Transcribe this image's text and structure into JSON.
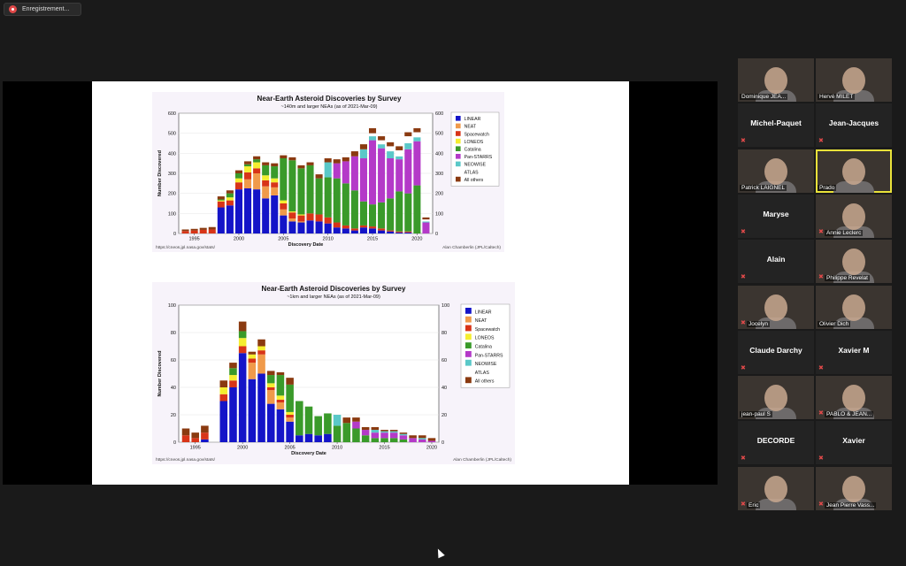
{
  "recording": {
    "label": "Enregistrement..."
  },
  "chart1": {
    "title": "Near-Earth Asteroid Discoveries by Survey",
    "subtitle": "~140m and larger NEAs (as of 2021-Mar-09)",
    "ylabel": "Number Discovered",
    "xlabel": "Discovery Date",
    "url": "https://cneos.jpl.nasa.gov/stats/",
    "credit": "Alan Chamberlin (JPL/Caltech)"
  },
  "chart2": {
    "title": "Near-Earth Asteroid Discoveries by Survey",
    "subtitle": "~1km and larger NEAs (as of 2021-Mar-09)",
    "ylabel": "Number Discovered",
    "xlabel": "Discovery Date",
    "url": "https://cneos.jpl.nasa.gov/stats/",
    "credit": "Alan Chamberlin (JPL/Caltech)"
  },
  "chart_data": [
    {
      "type": "bar",
      "stacked": true,
      "title": "Near-Earth Asteroid Discoveries by Survey",
      "subtitle": "~140m and larger NEAs (as of 2021-Mar-09)",
      "xlabel": "Discovery Date",
      "ylabel": "Number Discovered",
      "ylim": [
        0,
        600
      ],
      "yticks": [
        0,
        100,
        200,
        300,
        400,
        500,
        600
      ],
      "xticks": [
        1995,
        2000,
        2005,
        2010,
        2015,
        2020
      ],
      "legend_position": "right",
      "categories": [
        1994,
        1995,
        1996,
        1997,
        1998,
        1999,
        2000,
        2001,
        2002,
        2003,
        2004,
        2005,
        2006,
        2007,
        2008,
        2009,
        2010,
        2011,
        2012,
        2013,
        2014,
        2015,
        2016,
        2017,
        2018,
        2019,
        2020,
        2021
      ],
      "series": [
        {
          "name": "LINEAR",
          "color": "#1414c8",
          "values": [
            0,
            0,
            0,
            0,
            130,
            140,
            220,
            225,
            220,
            175,
            190,
            90,
            60,
            55,
            65,
            60,
            50,
            30,
            25,
            15,
            30,
            25,
            15,
            10,
            5,
            5,
            0,
            0
          ]
        },
        {
          "name": "NEAT",
          "color": "#f09a4a",
          "values": [
            0,
            0,
            0,
            0,
            0,
            0,
            0,
            45,
            80,
            60,
            40,
            30,
            15,
            5,
            0,
            0,
            0,
            0,
            0,
            0,
            0,
            0,
            0,
            0,
            0,
            0,
            0,
            0
          ]
        },
        {
          "name": "Spacewatch",
          "color": "#d83418",
          "values": [
            12,
            15,
            18,
            20,
            30,
            25,
            35,
            35,
            25,
            30,
            25,
            30,
            30,
            30,
            35,
            35,
            30,
            25,
            15,
            10,
            10,
            10,
            10,
            5,
            5,
            5,
            0,
            0
          ]
        },
        {
          "name": "LONEOS",
          "color": "#f5ee30",
          "values": [
            0,
            0,
            0,
            0,
            5,
            15,
            20,
            30,
            30,
            25,
            20,
            15,
            5,
            5,
            0,
            0,
            0,
            0,
            0,
            0,
            0,
            0,
            0,
            0,
            0,
            0,
            0,
            0
          ]
        },
        {
          "name": "Catalina",
          "color": "#3a9a2a",
          "values": [
            0,
            0,
            0,
            0,
            5,
            20,
            25,
            10,
            15,
            50,
            60,
            210,
            255,
            230,
            240,
            180,
            200,
            220,
            210,
            190,
            120,
            110,
            130,
            160,
            200,
            190,
            240,
            0
          ]
        },
        {
          "name": "Pan-STARRS",
          "color": "#b43ac8",
          "values": [
            0,
            0,
            0,
            0,
            0,
            0,
            0,
            0,
            0,
            0,
            0,
            0,
            0,
            0,
            0,
            0,
            0,
            75,
            110,
            170,
            215,
            320,
            270,
            200,
            160,
            220,
            220,
            55
          ]
        },
        {
          "name": "NEOWISE",
          "color": "#5ac8c8",
          "values": [
            0,
            0,
            0,
            0,
            0,
            0,
            0,
            0,
            0,
            0,
            0,
            0,
            0,
            0,
            0,
            0,
            75,
            0,
            0,
            0,
            45,
            20,
            20,
            35,
            15,
            30,
            20,
            5
          ]
        },
        {
          "name": "ATLAS",
          "color": "#ffffff",
          "values": [
            0,
            0,
            0,
            0,
            0,
            0,
            0,
            0,
            0,
            0,
            0,
            0,
            0,
            0,
            0,
            0,
            0,
            0,
            0,
            0,
            0,
            15,
            20,
            25,
            30,
            35,
            25,
            10
          ]
        },
        {
          "name": "All others",
          "color": "#8a3a10",
          "values": [
            8,
            8,
            10,
            12,
            15,
            15,
            15,
            15,
            15,
            15,
            15,
            15,
            15,
            15,
            15,
            20,
            20,
            20,
            20,
            25,
            25,
            25,
            20,
            20,
            20,
            20,
            20,
            10
          ]
        }
      ]
    },
    {
      "type": "bar",
      "stacked": true,
      "title": "Near-Earth Asteroid Discoveries by Survey",
      "subtitle": "~1km and larger NEAs (as of 2021-Mar-09)",
      "xlabel": "Discovery Date",
      "ylabel": "Number Discovered",
      "ylim": [
        0,
        100
      ],
      "yticks": [
        0,
        20,
        40,
        60,
        80,
        100
      ],
      "xticks": [
        1995,
        2000,
        2005,
        2010,
        2015,
        2020
      ],
      "legend_position": "right",
      "categories": [
        1994,
        1995,
        1996,
        1997,
        1998,
        1999,
        2000,
        2001,
        2002,
        2003,
        2004,
        2005,
        2006,
        2007,
        2008,
        2009,
        2010,
        2011,
        2012,
        2013,
        2014,
        2015,
        2016,
        2017,
        2018,
        2019,
        2020
      ],
      "series": [
        {
          "name": "LINEAR",
          "color": "#1414c8",
          "values": [
            0,
            0,
            2,
            0,
            30,
            40,
            65,
            46,
            50,
            28,
            24,
            15,
            5,
            6,
            5,
            6,
            0,
            0,
            0,
            0,
            0,
            0,
            0,
            0,
            0,
            0,
            0
          ]
        },
        {
          "name": "NEAT",
          "color": "#f09a4a",
          "values": [
            0,
            0,
            0,
            0,
            0,
            0,
            0,
            12,
            14,
            10,
            5,
            3,
            0,
            0,
            0,
            0,
            0,
            0,
            0,
            0,
            0,
            0,
            0,
            0,
            0,
            0,
            0
          ]
        },
        {
          "name": "Spacewatch",
          "color": "#d83418",
          "values": [
            5,
            3,
            5,
            0,
            5,
            5,
            5,
            3,
            3,
            2,
            2,
            2,
            0,
            0,
            0,
            0,
            0,
            0,
            0,
            0,
            0,
            0,
            0,
            0,
            0,
            0,
            0
          ]
        },
        {
          "name": "LONEOS",
          "color": "#f5ee30",
          "values": [
            0,
            0,
            0,
            0,
            5,
            4,
            6,
            3,
            3,
            3,
            3,
            2,
            0,
            0,
            0,
            0,
            0,
            0,
            0,
            0,
            0,
            0,
            0,
            0,
            0,
            0,
            0
          ]
        },
        {
          "name": "Catalina",
          "color": "#3a9a2a",
          "values": [
            0,
            0,
            0,
            0,
            0,
            5,
            5,
            0,
            0,
            6,
            15,
            20,
            25,
            20,
            14,
            15,
            12,
            14,
            10,
            5,
            3,
            3,
            3,
            2,
            0,
            0,
            0
          ]
        },
        {
          "name": "Pan-STARRS",
          "color": "#b43ac8",
          "values": [
            0,
            0,
            0,
            0,
            0,
            0,
            0,
            0,
            0,
            0,
            0,
            0,
            0,
            0,
            0,
            0,
            0,
            0,
            5,
            4,
            4,
            4,
            4,
            3,
            3,
            2,
            1
          ]
        },
        {
          "name": "NEOWISE",
          "color": "#5ac8c8",
          "values": [
            0,
            0,
            0,
            0,
            0,
            0,
            0,
            0,
            0,
            0,
            0,
            0,
            0,
            0,
            0,
            0,
            8,
            0,
            0,
            0,
            2,
            1,
            1,
            1,
            0,
            1,
            0
          ]
        },
        {
          "name": "ATLAS",
          "color": "#ffffff",
          "values": [
            0,
            0,
            0,
            0,
            0,
            0,
            0,
            0,
            0,
            0,
            0,
            0,
            0,
            0,
            0,
            0,
            0,
            0,
            0,
            0,
            0,
            0,
            0,
            0,
            0,
            0,
            0
          ]
        },
        {
          "name": "All others",
          "color": "#8a3a10",
          "values": [
            5,
            4,
            5,
            0,
            5,
            4,
            7,
            2,
            5,
            3,
            2,
            5,
            0,
            0,
            0,
            0,
            0,
            4,
            3,
            2,
            2,
            1,
            1,
            1,
            2,
            2,
            2
          ]
        }
      ]
    }
  ],
  "participants": [
    {
      "name": "Dominique JEA...",
      "type": "video",
      "muted": false
    },
    {
      "name": "Hervé MILET",
      "type": "video",
      "muted": false
    },
    {
      "name": "Michel-Paquet",
      "type": "name",
      "muted": true
    },
    {
      "name": "Jean-Jacques",
      "type": "name",
      "muted": true
    },
    {
      "name": "Patrick LAIGNEL",
      "type": "video",
      "muted": false
    },
    {
      "name": "Prado",
      "type": "video",
      "muted": false,
      "active": true
    },
    {
      "name": "Maryse",
      "type": "name",
      "muted": true
    },
    {
      "name": "Annie Leclerc",
      "type": "video",
      "muted": true
    },
    {
      "name": "Alain",
      "type": "name",
      "muted": true
    },
    {
      "name": "Philippe Revelat",
      "type": "video",
      "muted": true
    },
    {
      "name": "Jocelyn",
      "type": "video",
      "muted": true
    },
    {
      "name": "Olivier Dich",
      "type": "video",
      "muted": false
    },
    {
      "name": "Claude Darchy",
      "type": "name",
      "muted": true
    },
    {
      "name": "Xavier M",
      "type": "name",
      "muted": true
    },
    {
      "name": "jean-paul S",
      "type": "video",
      "muted": false
    },
    {
      "name": "PABLO & JEAN...",
      "type": "video",
      "muted": true
    },
    {
      "name": "DECORDE",
      "type": "name",
      "muted": true
    },
    {
      "name": "Xavier",
      "type": "name",
      "muted": true
    },
    {
      "name": "Eric",
      "type": "video",
      "muted": true
    },
    {
      "name": "Jean Pierre Vass...",
      "type": "video",
      "muted": true
    }
  ]
}
